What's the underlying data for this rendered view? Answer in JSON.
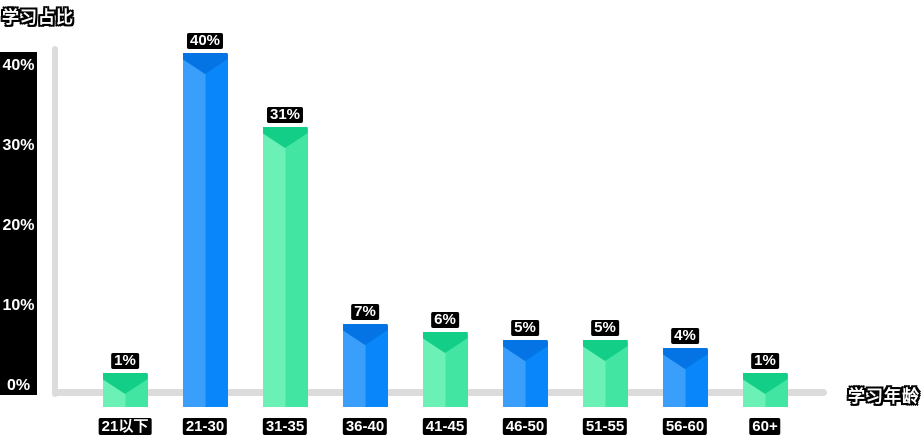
{
  "chart_data": {
    "type": "bar",
    "title": "",
    "xlabel": "学习年龄",
    "ylabel": "学习占比",
    "categories": [
      "21以下",
      "21-30",
      "31-35",
      "36-40",
      "41-45",
      "46-50",
      "51-55",
      "56-60",
      "60+"
    ],
    "values": [
      1,
      40,
      31,
      7,
      6,
      5,
      5,
      4,
      1
    ],
    "value_labels": [
      "1%",
      "40%",
      "31%",
      "7%",
      "6%",
      "5%",
      "5%",
      "4%",
      "1%"
    ],
    "bar_colors": [
      "green",
      "blue",
      "green",
      "blue",
      "green",
      "blue",
      "green",
      "blue",
      "green"
    ],
    "yticks": [
      {
        "label": "40%",
        "value": 40
      },
      {
        "label": "30%",
        "value": 30
      },
      {
        "label": "20%",
        "value": 20
      },
      {
        "label": "10%",
        "value": 10
      },
      {
        "label": "0%",
        "value": 0
      }
    ],
    "ylim": [
      0,
      45
    ],
    "grid": "off",
    "legend": "none"
  },
  "colors": {
    "green": {
      "left": "#6BF1B6",
      "right": "#42E5A1",
      "cap": "#12CE87"
    },
    "blue": {
      "left": "#3A9FFA",
      "right": "#0886FA",
      "cap": "#0474E4"
    },
    "axis": "#DCDCDC",
    "label_bg": "#000000",
    "label_fg": "#FFFFFF",
    "background": "#FFFFFF"
  }
}
